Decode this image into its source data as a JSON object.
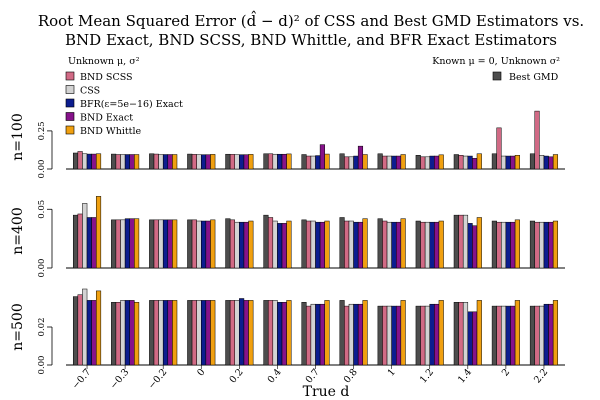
{
  "chart_data": {
    "type": "bar",
    "title_line1": "Root Mean Squared Error (d̂ − d)² of CSS and Best GMD Estimators vs.",
    "title_line2": "BND Exact, BND SCSS, BND Whittle, and BFR Exact Estimators",
    "subtitle_left": "Unknown μ, σ²",
    "subtitle_right": "Known μ = 0, Unknown σ²",
    "xlabel": "True d",
    "categories": [
      "−0.7",
      "−0.3",
      "−0.2",
      "0",
      "0.2",
      "0.4",
      "0.7",
      "0.8",
      "1",
      "1.2",
      "1.4",
      "2",
      "2.2"
    ],
    "series": [
      {
        "name": "Best GMD",
        "color": "#4d4d4d"
      },
      {
        "name": "BND SCSS",
        "color": "#d16a85"
      },
      {
        "name": "CSS",
        "color": "#d3d3d3"
      },
      {
        "name": "BFR(ε=5e−16) Exact",
        "color": "#0c1d8f"
      },
      {
        "name": "BND Exact",
        "color": "#86128a"
      },
      {
        "name": "BND Whittle",
        "color": "#f0a010"
      }
    ],
    "legend_left": [
      "BND SCSS",
      "CSS",
      "BFR(ε=5e−16) Exact",
      "BND Exact",
      "BND Whittle"
    ],
    "legend_right": [
      "Best GMD"
    ],
    "panels": [
      {
        "label": "n=100",
        "ylim": [
          0,
          0.42
        ],
        "ticks": [
          "0.00",
          "0.25"
        ],
        "tick_values": [
          0,
          0.25
        ],
        "values": [
          [
            0.105,
            0.115,
            0.1,
            0.098,
            0.098,
            0.1
          ],
          [
            0.098,
            0.095,
            0.095,
            0.095,
            0.095,
            0.095
          ],
          [
            0.1,
            0.098,
            0.095,
            0.095,
            0.095,
            0.095
          ],
          [
            0.098,
            0.096,
            0.094,
            0.094,
            0.094,
            0.096
          ],
          [
            0.097,
            0.096,
            0.094,
            0.094,
            0.094,
            0.096
          ],
          [
            0.1,
            0.1,
            0.097,
            0.097,
            0.097,
            0.099
          ],
          [
            0.095,
            0.085,
            0.085,
            0.088,
            0.16,
            0.098
          ],
          [
            0.1,
            0.08,
            0.08,
            0.085,
            0.15,
            0.095
          ],
          [
            0.1,
            0.085,
            0.085,
            0.085,
            0.085,
            0.095
          ],
          [
            0.09,
            0.08,
            0.08,
            0.085,
            0.085,
            0.093
          ],
          [
            0.095,
            0.09,
            0.085,
            0.085,
            0.07,
            0.1
          ],
          [
            0.1,
            0.27,
            0.085,
            0.085,
            0.085,
            0.09
          ],
          [
            0.1,
            0.38,
            0.09,
            0.085,
            0.08,
            0.095
          ]
        ]
      },
      {
        "label": "n=400",
        "ylim": [
          0,
          0.063
        ],
        "ticks": [
          "0.00",
          "0.05"
        ],
        "tick_values": [
          0,
          0.05
        ],
        "values": [
          [
            0.045,
            0.046,
            0.055,
            0.043,
            0.043,
            0.061
          ],
          [
            0.041,
            0.041,
            0.041,
            0.042,
            0.042,
            0.042
          ],
          [
            0.041,
            0.041,
            0.041,
            0.041,
            0.041,
            0.041
          ],
          [
            0.041,
            0.041,
            0.04,
            0.04,
            0.04,
            0.041
          ],
          [
            0.042,
            0.041,
            0.039,
            0.039,
            0.039,
            0.04
          ],
          [
            0.045,
            0.043,
            0.04,
            0.038,
            0.038,
            0.04
          ],
          [
            0.041,
            0.04,
            0.04,
            0.039,
            0.039,
            0.04
          ],
          [
            0.043,
            0.04,
            0.04,
            0.039,
            0.039,
            0.042
          ],
          [
            0.042,
            0.04,
            0.039,
            0.039,
            0.039,
            0.042
          ],
          [
            0.04,
            0.039,
            0.039,
            0.039,
            0.039,
            0.04
          ],
          [
            0.045,
            0.045,
            0.045,
            0.038,
            0.036,
            0.043
          ],
          [
            0.04,
            0.039,
            0.039,
            0.039,
            0.039,
            0.041
          ],
          [
            0.04,
            0.039,
            0.039,
            0.039,
            0.039,
            0.04
          ]
        ]
      },
      {
        "label": "n=500",
        "ylim": [
          0,
          0.04
        ],
        "ticks": [
          "0.00",
          "0.02"
        ],
        "tick_values": [
          0,
          0.02
        ],
        "values": [
          [
            0.036,
            0.037,
            0.04,
            0.034,
            0.034,
            0.039
          ],
          [
            0.033,
            0.033,
            0.034,
            0.034,
            0.034,
            0.033
          ],
          [
            0.034,
            0.034,
            0.034,
            0.034,
            0.034,
            0.034
          ],
          [
            0.034,
            0.034,
            0.034,
            0.034,
            0.034,
            0.034
          ],
          [
            0.034,
            0.034,
            0.034,
            0.035,
            0.034,
            0.034
          ],
          [
            0.034,
            0.034,
            0.034,
            0.033,
            0.033,
            0.034
          ],
          [
            0.033,
            0.031,
            0.032,
            0.032,
            0.032,
            0.034
          ],
          [
            0.034,
            0.031,
            0.032,
            0.032,
            0.032,
            0.034
          ],
          [
            0.031,
            0.031,
            0.031,
            0.031,
            0.031,
            0.034
          ],
          [
            0.031,
            0.031,
            0.031,
            0.032,
            0.032,
            0.034
          ],
          [
            0.033,
            0.033,
            0.033,
            0.028,
            0.028,
            0.034
          ],
          [
            0.031,
            0.031,
            0.031,
            0.031,
            0.031,
            0.034
          ],
          [
            0.031,
            0.031,
            0.031,
            0.032,
            0.032,
            0.034
          ]
        ]
      }
    ]
  }
}
